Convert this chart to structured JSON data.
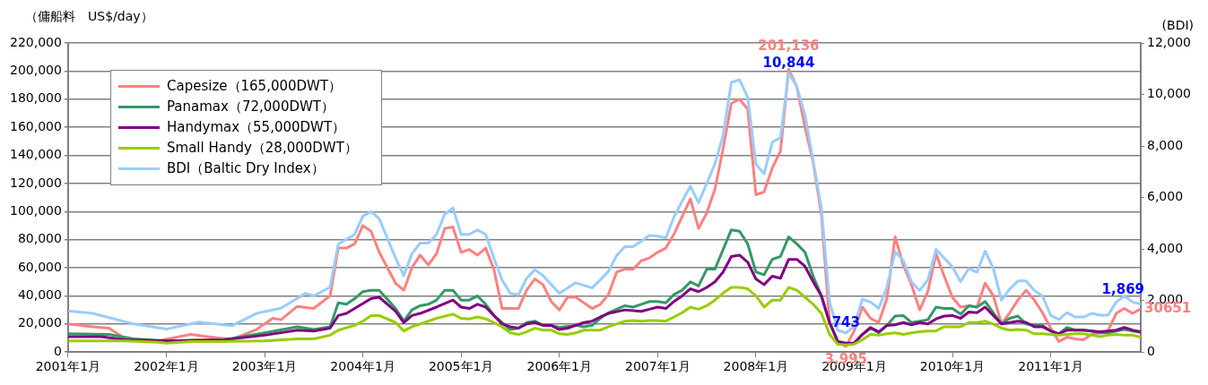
{
  "chart_data": {
    "type": "line",
    "ylabel": "（傭船料　US$/day）",
    "y2label": "(BDI)",
    "xlim": [
      "2001-01",
      "2011-12"
    ],
    "xticks": [
      {
        "value": "2001-01",
        "label": "2001年1月"
      },
      {
        "value": "2002-01",
        "label": "2002年1月"
      },
      {
        "value": "2003-01",
        "label": "2003年1月"
      },
      {
        "value": "2004-01",
        "label": "2004年1月"
      },
      {
        "value": "2005-01",
        "label": "2005年1月"
      },
      {
        "value": "2006-01",
        "label": "2006年1月"
      },
      {
        "value": "2007-01",
        "label": "2007年1月"
      },
      {
        "value": "2008-01",
        "label": "2008年1月"
      },
      {
        "value": "2009-01",
        "label": "2009年1月"
      },
      {
        "value": "2010-01",
        "label": "2010年1月"
      },
      {
        "value": "2011-01",
        "label": "2011年1月"
      }
    ],
    "ylim": [
      0,
      220000
    ],
    "yticks": [
      0,
      {
        "value": 20000,
        "label": "20,000"
      },
      {
        "value": 40000,
        "label": "40,000"
      },
      {
        "value": 60000,
        "label": "60,000"
      },
      {
        "value": 80000,
        "label": "80,000"
      },
      {
        "value": 100000,
        "label": "100,000"
      },
      {
        "value": 120000,
        "label": "120,000"
      },
      {
        "value": 140000,
        "label": "140,000"
      },
      {
        "value": 160000,
        "label": "160,000"
      },
      {
        "value": 180000,
        "label": "180,000"
      },
      {
        "value": 200000,
        "label": "200,000"
      },
      {
        "value": 220000,
        "label": "220,000"
      }
    ],
    "y2lim": [
      0,
      12000
    ],
    "y2ticks": [
      0,
      {
        "value": 2000,
        "label": "2,000"
      },
      {
        "value": 4000,
        "label": "4,000"
      },
      {
        "value": 6000,
        "label": "6,000"
      },
      {
        "value": 8000,
        "label": "8,000"
      },
      {
        "value": 10000,
        "label": "10,000"
      },
      {
        "value": 12000,
        "label": "12,000"
      }
    ],
    "grid": "y",
    "legend": "top left",
    "series": [
      {
        "name": "Capesize（165,000DWT）",
        "color": "#ff8080",
        "x": [
          "2001-01",
          "2001-04",
          "2001-06",
          "2001-08",
          "2001-12",
          "2002-04",
          "2002-06",
          "2002-09",
          "2002-12",
          "2003-02",
          "2003-03",
          "2003-05",
          "2003-07",
          "2003-09",
          "2003-10",
          "2003-11",
          "2003-12",
          "2004-01",
          "2004-02",
          "2004-03",
          "2004-05",
          "2004-06",
          "2004-07",
          "2004-08",
          "2004-09",
          "2004-10",
          "2004-11",
          "2004-12",
          "2005-01",
          "2005-02",
          "2005-03",
          "2005-04",
          "2005-05",
          "2005-06",
          "2005-08",
          "2005-09",
          "2005-10",
          "2005-11",
          "2005-12",
          "2006-01",
          "2006-02",
          "2006-03",
          "2006-05",
          "2006-06",
          "2006-07",
          "2006-08",
          "2006-09",
          "2006-10",
          "2006-11",
          "2006-12",
          "2007-01",
          "2007-02",
          "2007-03",
          "2007-05",
          "2007-06",
          "2007-07",
          "2007-08",
          "2007-09",
          "2007-10",
          "2007-11",
          "2007-12",
          "2008-01",
          "2008-02",
          "2008-03",
          "2008-04",
          "2008-05",
          "2008-06",
          "2008-07",
          "2008-08",
          "2008-09",
          "2008-10",
          "2008-11",
          "2008-12",
          "2009-01",
          "2009-02",
          "2009-03",
          "2009-04",
          "2009-05",
          "2009-06",
          "2009-07",
          "2009-08",
          "2009-09",
          "2009-10",
          "2009-11",
          "2009-12",
          "2010-01",
          "2010-02",
          "2010-03",
          "2010-04",
          "2010-05",
          "2010-06",
          "2010-07",
          "2010-08",
          "2010-09",
          "2010-10",
          "2010-11",
          "2010-12",
          "2011-01",
          "2011-02",
          "2011-03",
          "2011-04",
          "2011-05",
          "2011-06",
          "2011-07",
          "2011-08",
          "2011-09",
          "2011-10",
          "2011-11",
          "2011-12"
        ],
        "values": [
          20000,
          18000,
          17000,
          9400,
          8000,
          12500,
          11000,
          9000,
          16000,
          24000,
          23000,
          32500,
          31000,
          40000,
          74000,
          74000,
          77000,
          90000,
          86000,
          71000,
          49000,
          44000,
          60000,
          69000,
          62000,
          70000,
          88000,
          89000,
          71000,
          73000,
          69000,
          74000,
          59000,
          31000,
          31000,
          44000,
          52000,
          48000,
          36000,
          30000,
          39000,
          39000,
          31000,
          34000,
          41000,
          57000,
          59000,
          59000,
          65000,
          67000,
          71000,
          74000,
          84000,
          109000,
          88000,
          99000,
          116000,
          145000,
          177000,
          180000,
          173000,
          112000,
          114000,
          131000,
          143000,
          201136,
          189000,
          160000,
          135000,
          98000,
          21000,
          7500,
          3995,
          15000,
          32000,
          24000,
          21000,
          38000,
          82000,
          62000,
          48000,
          30000,
          43000,
          70000,
          54000,
          39000,
          32000,
          33000,
          32000,
          49000,
          40000,
          20000,
          28000,
          37000,
          44000,
          37000,
          28000,
          17000,
          7500,
          10600,
          9400,
          8700,
          12500,
          13700,
          15000,
          27500,
          31000,
          27500,
          30651
        ],
        "value_labels": [
          null,
          null,
          null,
          null,
          null,
          null,
          null,
          null,
          null,
          null,
          null,
          null,
          null,
          null,
          null,
          null,
          null,
          null,
          null,
          null,
          null,
          null,
          null,
          null,
          null,
          null,
          null,
          null,
          null,
          null,
          null,
          null,
          null,
          null,
          null,
          null,
          null,
          null,
          null,
          null,
          null,
          null,
          null,
          null,
          null,
          null,
          null,
          null,
          null,
          null,
          null,
          null,
          null,
          null,
          null,
          null,
          null,
          null,
          null,
          null,
          null,
          null,
          null,
          null,
          null,
          "201,136",
          null,
          null,
          null,
          null,
          null,
          null,
          "3,995",
          null,
          null,
          null,
          null,
          null,
          null,
          null,
          null,
          null,
          null,
          null,
          null,
          null,
          null,
          null,
          null,
          null,
          null,
          null,
          null,
          null,
          null,
          null,
          null,
          null,
          null,
          null,
          null,
          null,
          null,
          null,
          null,
          null,
          null,
          null,
          "30651"
        ]
      },
      {
        "name": "Panamax（72,000DWT）",
        "color": "#339966",
        "x": [
          "2001-01",
          "2001-06",
          "2001-09",
          "2002-01",
          "2002-08",
          "2003-01",
          "2003-05",
          "2003-07",
          "2003-09",
          "2003-10",
          "2003-11",
          "2003-12",
          "2004-01",
          "2004-02",
          "2004-03",
          "2004-05",
          "2004-06",
          "2004-07",
          "2004-08",
          "2004-09",
          "2004-10",
          "2004-11",
          "2004-12",
          "2005-01",
          "2005-02",
          "2005-03",
          "2005-04",
          "2005-05",
          "2005-06",
          "2005-07",
          "2005-08",
          "2005-09",
          "2005-10",
          "2005-11",
          "2005-12",
          "2006-01",
          "2006-03",
          "2006-04",
          "2006-05",
          "2006-06",
          "2006-07",
          "2006-09",
          "2006-10",
          "2006-11",
          "2006-12",
          "2007-01",
          "2007-02",
          "2007-03",
          "2007-04",
          "2007-05",
          "2007-06",
          "2007-07",
          "2007-08",
          "2007-09",
          "2007-10",
          "2007-11",
          "2007-12",
          "2008-01",
          "2008-02",
          "2008-03",
          "2008-04",
          "2008-05",
          "2008-06",
          "2008-07",
          "2008-08",
          "2008-09",
          "2008-10",
          "2008-11",
          "2008-12",
          "2009-01",
          "2009-02",
          "2009-03",
          "2009-04",
          "2009-05",
          "2009-06",
          "2009-07",
          "2009-08",
          "2009-09",
          "2009-10",
          "2009-11",
          "2009-12",
          "2010-01",
          "2010-02",
          "2010-03",
          "2010-04",
          "2010-05",
          "2010-06",
          "2010-07",
          "2010-08",
          "2010-09",
          "2010-10",
          "2010-11",
          "2010-12",
          "2011-01",
          "2011-02",
          "2011-03",
          "2011-04",
          "2011-05",
          "2011-06",
          "2011-07",
          "2011-08",
          "2011-09",
          "2011-10",
          "2011-11",
          "2011-12"
        ],
        "values": [
          13000,
          12500,
          9400,
          8000,
          8700,
          13700,
          18000,
          16000,
          18000,
          35000,
          34000,
          38000,
          43000,
          44000,
          44000,
          31000,
          22000,
          30000,
          33000,
          34000,
          37000,
          44000,
          44000,
          37000,
          37000,
          40000,
          34000,
          26000,
          21000,
          16000,
          17000,
          21000,
          22000,
          19000,
          19000,
          17500,
          19000,
          18000,
          19000,
          24000,
          28000,
          33000,
          32000,
          34000,
          36000,
          36000,
          35000,
          41000,
          44000,
          50000,
          47000,
          59000,
          59000,
          73000,
          87000,
          86000,
          77000,
          57000,
          55000,
          66000,
          68000,
          82000,
          77000,
          71000,
          54000,
          40000,
          21000,
          7500,
          5600,
          6300,
          12500,
          17000,
          13700,
          19000,
          25600,
          26000,
          21000,
          22000,
          23000,
          32000,
          31000,
          31000,
          27000,
          33000,
          32000,
          36000,
          28000,
          20000,
          24000,
          25600,
          20000,
          19000,
          19000,
          15000,
          13000,
          17500,
          15600,
          15600,
          15000,
          13700,
          13700,
          15000,
          16000,
          15000,
          14000
        ]
      },
      {
        "name": "Handymax（55,000DWT）",
        "color": "#800080",
        "x": [
          "2001-01",
          "2001-05",
          "2001-08",
          "2002-01",
          "2002-08",
          "2003-01",
          "2003-05",
          "2003-07",
          "2003-09",
          "2003-10",
          "2003-11",
          "2003-12",
          "2004-02",
          "2004-03",
          "2004-05",
          "2004-06",
          "2004-07",
          "2004-08",
          "2004-10",
          "2004-12",
          "2005-01",
          "2005-02",
          "2005-03",
          "2005-04",
          "2005-05",
          "2005-06",
          "2005-07",
          "2005-08",
          "2005-09",
          "2005-10",
          "2005-11",
          "2005-12",
          "2006-01",
          "2006-02",
          "2006-03",
          "2006-04",
          "2006-05",
          "2006-06",
          "2006-07",
          "2006-09",
          "2006-11",
          "2006-12",
          "2007-01",
          "2007-02",
          "2007-03",
          "2007-04",
          "2007-05",
          "2007-06",
          "2007-07",
          "2007-08",
          "2007-09",
          "2007-10",
          "2007-11",
          "2007-12",
          "2008-01",
          "2008-02",
          "2008-03",
          "2008-04",
          "2008-05",
          "2008-06",
          "2008-07",
          "2008-08",
          "2008-09",
          "2008-10",
          "2008-11",
          "2008-12",
          "2009-01",
          "2009-02",
          "2009-03",
          "2009-04",
          "2009-05",
          "2009-06",
          "2009-07",
          "2009-08",
          "2009-09",
          "2009-10",
          "2009-11",
          "2009-12",
          "2010-01",
          "2010-02",
          "2010-03",
          "2010-04",
          "2010-05",
          "2010-06",
          "2010-07",
          "2010-08",
          "2010-09",
          "2010-10",
          "2010-11",
          "2010-12",
          "2011-01",
          "2011-02",
          "2011-03",
          "2011-04",
          "2011-05",
          "2011-06",
          "2011-07",
          "2011-08",
          "2011-09",
          "2011-10",
          "2011-11",
          "2011-12"
        ],
        "values": [
          11000,
          11000,
          8700,
          8000,
          8700,
          12000,
          15600,
          15000,
          17000,
          26000,
          27500,
          31000,
          38000,
          39000,
          29000,
          21000,
          26000,
          27500,
          32000,
          37000,
          32000,
          31000,
          34000,
          32000,
          26000,
          20000,
          18000,
          17000,
          20000,
          21000,
          19000,
          19000,
          16000,
          17000,
          19000,
          21000,
          22000,
          25000,
          27500,
          30000,
          29000,
          30500,
          32000,
          31000,
          36000,
          40000,
          45000,
          43000,
          46000,
          50000,
          57000,
          68000,
          69000,
          64000,
          52000,
          48000,
          54000,
          52500,
          66000,
          66000,
          61000,
          50000,
          40000,
          21000,
          7500,
          6300,
          6300,
          12500,
          17500,
          14400,
          19000,
          19400,
          21000,
          19400,
          21000,
          20000,
          23600,
          25600,
          26000,
          24000,
          28500,
          28000,
          32000,
          26000,
          20000,
          21000,
          22000,
          21000,
          18000,
          18000,
          15000,
          13000,
          15600,
          15600,
          15600,
          15000,
          14400,
          15000,
          15600,
          17500,
          15600,
          14400
        ]
      },
      {
        "name": "Small Handy（28,000DWT）",
        "color": "#99cc00",
        "x": [
          "2001-01",
          "2001-08",
          "2001-12",
          "2002-01",
          "2002-04",
          "2002-08",
          "2003-01",
          "2003-05",
          "2003-07",
          "2003-09",
          "2003-10",
          "2003-12",
          "2004-01",
          "2004-02",
          "2004-03",
          "2004-05",
          "2004-06",
          "2004-07",
          "2004-08",
          "2004-10",
          "2004-12",
          "2005-01",
          "2005-02",
          "2005-03",
          "2005-04",
          "2005-05",
          "2005-06",
          "2005-07",
          "2005-08",
          "2005-09",
          "2005-10",
          "2005-11",
          "2005-12",
          "2006-01",
          "2006-02",
          "2006-03",
          "2006-04",
          "2006-06",
          "2006-07",
          "2006-09",
          "2006-10",
          "2006-11",
          "2006-12",
          "2007-01",
          "2007-02",
          "2007-03",
          "2007-04",
          "2007-05",
          "2007-06",
          "2007-07",
          "2007-08",
          "2007-09",
          "2007-10",
          "2007-11",
          "2007-12",
          "2008-01",
          "2008-02",
          "2008-03",
          "2008-04",
          "2008-05",
          "2008-06",
          "2008-07",
          "2008-08",
          "2008-09",
          "2008-10",
          "2008-11",
          "2008-12",
          "2009-01",
          "2009-02",
          "2009-03",
          "2009-04",
          "2009-05",
          "2009-06",
          "2009-07",
          "2009-08",
          "2009-09",
          "2009-10",
          "2009-11",
          "2009-12",
          "2010-01",
          "2010-02",
          "2010-03",
          "2010-04",
          "2010-05",
          "2010-06",
          "2010-07",
          "2010-08",
          "2010-09",
          "2010-10",
          "2010-11",
          "2010-12",
          "2011-01",
          "2011-02",
          "2011-03",
          "2011-04",
          "2011-05",
          "2011-06",
          "2011-07",
          "2011-08",
          "2011-09",
          "2011-10",
          "2011-11",
          "2011-12"
        ],
        "values": [
          8000,
          8000,
          7000,
          6300,
          7500,
          7500,
          8000,
          9400,
          9400,
          12000,
          15600,
          19000,
          22000,
          26000,
          26000,
          21000,
          15000,
          18000,
          20000,
          24000,
          27000,
          24000,
          23600,
          25000,
          23600,
          21000,
          18000,
          13700,
          12500,
          14400,
          17000,
          15600,
          15600,
          13000,
          12500,
          13700,
          15600,
          15600,
          18000,
          22000,
          22500,
          22000,
          22500,
          22500,
          22000,
          25000,
          28000,
          32000,
          30500,
          33000,
          37000,
          42000,
          46000,
          46000,
          45000,
          40000,
          32000,
          37000,
          37000,
          46000,
          44000,
          39000,
          34000,
          27500,
          12500,
          5600,
          5000,
          5600,
          8700,
          12500,
          12000,
          13000,
          13700,
          12500,
          13700,
          14400,
          15000,
          15000,
          18000,
          18000,
          18000,
          21000,
          21000,
          22000,
          20000,
          17000,
          15600,
          16000,
          15600,
          13000,
          13000,
          12500,
          12000,
          12500,
          13000,
          13000,
          12000,
          11000,
          12000,
          12500,
          12000,
          12000,
          10600
        ]
      },
      {
        "name": "BDI（Baltic Dry Index）",
        "color": "#99ccff",
        "axis": "y2",
        "x": [
          "2001-01",
          "2001-04",
          "2001-07",
          "2001-09",
          "2002-01",
          "2002-05",
          "2002-09",
          "2002-12",
          "2003-03",
          "2003-06",
          "2003-07",
          "2003-09",
          "2003-10",
          "2003-12",
          "2004-01",
          "2004-02",
          "2004-03",
          "2004-05",
          "2004-06",
          "2004-07",
          "2004-08",
          "2004-09",
          "2004-10",
          "2004-11",
          "2004-12",
          "2005-01",
          "2005-02",
          "2005-03",
          "2005-04",
          "2005-05",
          "2005-06",
          "2005-07",
          "2005-08",
          "2005-09",
          "2005-10",
          "2005-11",
          "2005-12",
          "2006-01",
          "2006-03",
          "2006-05",
          "2006-06",
          "2006-07",
          "2006-08",
          "2006-09",
          "2006-10",
          "2006-11",
          "2006-12",
          "2007-01",
          "2007-02",
          "2007-03",
          "2007-04",
          "2007-05",
          "2007-06",
          "2007-07",
          "2007-08",
          "2007-09",
          "2007-10",
          "2007-11",
          "2007-12",
          "2008-01",
          "2008-02",
          "2008-03",
          "2008-04",
          "2008-05",
          "2008-06",
          "2008-07",
          "2008-08",
          "2008-09",
          "2008-10",
          "2008-11",
          "2008-12",
          "2009-01",
          "2009-02",
          "2009-03",
          "2009-04",
          "2009-05",
          "2009-06",
          "2009-07",
          "2009-08",
          "2009-09",
          "2009-10",
          "2009-11",
          "2009-12",
          "2010-01",
          "2010-02",
          "2010-03",
          "2010-04",
          "2010-05",
          "2010-06",
          "2010-07",
          "2010-08",
          "2010-09",
          "2010-10",
          "2010-11",
          "2010-12",
          "2011-01",
          "2011-02",
          "2011-03",
          "2011-04",
          "2011-05",
          "2011-06",
          "2011-07",
          "2011-08",
          "2011-09",
          "2011-10",
          "2011-11",
          "2011-12"
        ],
        "values": [
          1600,
          1500,
          1260,
          1090,
          890,
          1160,
          1020,
          1500,
          1700,
          2280,
          2180,
          2520,
          4190,
          4570,
          5280,
          5450,
          5180,
          3650,
          2970,
          3820,
          4230,
          4230,
          4570,
          5350,
          5590,
          4570,
          4570,
          4740,
          4570,
          3650,
          2800,
          2280,
          2220,
          2860,
          3200,
          2970,
          2620,
          2280,
          2690,
          2490,
          2800,
          3140,
          3750,
          4090,
          4090,
          4300,
          4530,
          4500,
          4430,
          5250,
          5860,
          6440,
          5800,
          6550,
          7300,
          8420,
          10470,
          10570,
          9890,
          7300,
          6920,
          8150,
          8320,
          10844,
          10300,
          9200,
          7400,
          5590,
          1940,
          850,
          743,
          990,
          2050,
          1940,
          1700,
          2520,
          3890,
          3550,
          2730,
          2390,
          2800,
          3990,
          3650,
          3310,
          2730,
          3240,
          3100,
          3920,
          3240,
          2010,
          2450,
          2760,
          2760,
          2390,
          2180,
          1430,
          1260,
          1530,
          1360,
          1360,
          1500,
          1430,
          1430,
          1940,
          2180,
          1940,
          1869
        ],
        "value_labels": [
          null,
          null,
          null,
          null,
          null,
          null,
          null,
          null,
          null,
          null,
          null,
          null,
          null,
          null,
          null,
          null,
          null,
          null,
          null,
          null,
          null,
          null,
          null,
          null,
          null,
          null,
          null,
          null,
          null,
          null,
          null,
          null,
          null,
          null,
          null,
          null,
          null,
          null,
          null,
          null,
          null,
          null,
          null,
          null,
          null,
          null,
          null,
          null,
          null,
          null,
          null,
          null,
          null,
          null,
          null,
          null,
          null,
          null,
          null,
          null,
          null,
          null,
          null,
          "10,844",
          null,
          null,
          null,
          null,
          null,
          null,
          "743",
          null,
          null,
          null,
          null,
          null,
          null,
          null,
          null,
          null,
          null,
          null,
          null,
          null,
          null,
          null,
          null,
          null,
          null,
          null,
          null,
          null,
          null,
          null,
          null,
          null,
          null,
          null,
          null,
          null,
          null,
          null,
          null,
          null,
          null,
          null,
          "1,869"
        ]
      }
    ]
  }
}
